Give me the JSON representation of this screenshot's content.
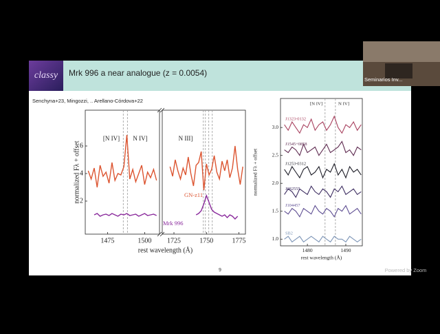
{
  "zoom": {
    "participant_label": "Seminarios Inv...",
    "watermark": "Powered by Zoom"
  },
  "slide": {
    "logo": "classy",
    "title": "Mrk 996 a near analogue (z = 0.0054)",
    "citation": "Senchyna+23, Mingozzi, .. Arellano-Córdova+22",
    "page_number": "9"
  },
  "chart_data": [
    {
      "type": "line",
      "xlabel": "rest wavelength (Å)",
      "ylabel": "normalized Fλ + offset",
      "annotations": [
        "[N IV]",
        "N IV]",
        "N III]"
      ],
      "ylim": [
        -0.4,
        8.6
      ],
      "yticks": [
        2,
        4,
        6
      ],
      "panels": [
        {
          "xlim": [
            1460,
            1510
          ],
          "xticks": [
            1475,
            1500
          ]
        },
        {
          "xlim": [
            1716,
            1780
          ],
          "xticks": [
            1725,
            1750,
            1775
          ]
        }
      ],
      "reference_lines": [
        1485.6,
        1488.4,
        1747.6,
        1749.2,
        1751.8,
        1754.5
      ],
      "series": [
        {
          "name": "GN-z11",
          "color": "#dc5430",
          "x": [
            1462,
            1464,
            1466,
            1468,
            1470,
            1472,
            1474,
            1476,
            1478,
            1480,
            1482,
            1484,
            1486,
            1488,
            1490,
            1492,
            1494,
            1496,
            1498,
            1500,
            1502,
            1504,
            1506,
            1508,
            null,
            1722,
            1724,
            1726,
            1728,
            1730,
            1732,
            1734,
            1736,
            1738,
            1740,
            1742,
            1744,
            1746,
            1748,
            1750,
            1752,
            1754,
            1756,
            1758,
            1760,
            1762,
            1764,
            1766,
            1768,
            1770,
            1772,
            1774,
            1776,
            1778
          ],
          "values": [
            4.2,
            3.6,
            4.4,
            3.0,
            4.6,
            3.8,
            4.1,
            3.3,
            4.8,
            3.5,
            4.0,
            3.9,
            4.5,
            6.8,
            3.6,
            4.3,
            3.4,
            4.0,
            4.6,
            3.2,
            4.1,
            3.7,
            4.3,
            3.5,
            null,
            4.5,
            3.8,
            5.0,
            4.2,
            3.6,
            4.4,
            3.9,
            5.2,
            4.0,
            3.1,
            4.6,
            4.8,
            5.6,
            2.8,
            4.7,
            3.9,
            4.3,
            5.3,
            4.1,
            3.6,
            4.9,
            4.2,
            5.0,
            3.7,
            4.4,
            6.0,
            4.3,
            3.2,
            4.5
          ]
        },
        {
          "name": "Mrk 996",
          "color": "#8a2a9c",
          "x": [
            1466,
            1468,
            1470,
            1472,
            1474,
            1476,
            1478,
            1480,
            1482,
            1484,
            1486,
            1488,
            1490,
            1492,
            1494,
            1496,
            1498,
            1500,
            1502,
            1504,
            1506,
            1508,
            null,
            1742,
            1744,
            1746,
            1748,
            1750,
            1752,
            1754,
            1756,
            1758,
            1760,
            1762,
            1764,
            1766,
            1768,
            1770,
            1772,
            1774
          ],
          "values": [
            1.0,
            1.1,
            0.9,
            1.0,
            1.05,
            0.95,
            1.1,
            1.0,
            0.9,
            1.05,
            1.0,
            1.1,
            0.95,
            1.0,
            1.05,
            0.9,
            1.0,
            1.1,
            0.95,
            1.0,
            1.05,
            0.95,
            null,
            1.0,
            1.1,
            1.3,
            1.8,
            2.4,
            1.9,
            1.4,
            1.2,
            1.1,
            1.0,
            0.9,
            1.0,
            0.8,
            1.0,
            0.9,
            0.7,
            0.9
          ]
        }
      ]
    },
    {
      "type": "line",
      "xlabel": "rest wavelength (Å)",
      "ylabel": "normalized Fλ + offset",
      "annotations": [
        "[N IV]",
        "N IV]"
      ],
      "ylim": [
        0.88,
        3.52
      ],
      "yticks": [
        {
          "value": 1,
          "label": "1.0"
        },
        1.5,
        {
          "value": 2,
          "label": "2.0"
        },
        2.5,
        {
          "value": 3,
          "label": "3.0"
        }
      ],
      "panels": [
        {
          "xlim": [
            1473,
            1494.3
          ],
          "xticks": [
            1480,
            1490
          ]
        }
      ],
      "reference_lines": [
        1484.6,
        1487.3
      ],
      "x": [
        1474,
        1475,
        1476,
        1477,
        1478,
        1479,
        1480,
        1481,
        1482,
        1483,
        1484,
        1485,
        1486,
        1487,
        1488,
        1489,
        1490,
        1491,
        1492,
        1493,
        1494
      ],
      "series": [
        {
          "name": "J1323-0132",
          "color": "#a8405e",
          "values": [
            3.05,
            2.95,
            3.1,
            3.0,
            2.9,
            3.05,
            3.0,
            3.15,
            2.95,
            3.05,
            3.1,
            2.95,
            3.05,
            3.2,
            3.0,
            2.9,
            3.05,
            3.0,
            3.1,
            2.95,
            3.05
          ]
        },
        {
          "name": "J1545+0858",
          "color": "#5e2a50",
          "values": [
            2.6,
            2.55,
            2.65,
            2.6,
            2.5,
            2.7,
            2.55,
            2.6,
            2.65,
            2.5,
            2.6,
            2.7,
            2.55,
            2.6,
            2.65,
            2.75,
            2.55,
            2.6,
            2.5,
            2.65,
            2.6
          ]
        },
        {
          "name": "J1253-0312",
          "color": "#1e1e28",
          "values": [
            2.25,
            2.15,
            2.3,
            2.2,
            2.1,
            2.25,
            2.3,
            2.15,
            2.2,
            2.3,
            2.1,
            2.25,
            2.2,
            2.35,
            2.15,
            2.25,
            2.1,
            2.3,
            2.2,
            2.25,
            2.15
          ]
        },
        {
          "name": "J082555",
          "color": "#3c2c60",
          "values": [
            1.8,
            1.9,
            1.85,
            1.75,
            1.9,
            1.85,
            1.8,
            1.95,
            1.85,
            1.8,
            1.9,
            1.85,
            1.75,
            1.9,
            1.85,
            1.95,
            1.8,
            1.85,
            1.9,
            1.8,
            1.85
          ]
        },
        {
          "name": "J104457",
          "color": "#5e4e92",
          "values": [
            1.5,
            1.45,
            1.55,
            1.5,
            1.4,
            1.55,
            1.5,
            1.45,
            1.6,
            1.5,
            1.45,
            1.55,
            1.5,
            1.4,
            1.55,
            1.5,
            1.6,
            1.45,
            1.5,
            1.55,
            1.45
          ]
        },
        {
          "name": "SB2",
          "color": "#7c94b6",
          "values": [
            1.0,
            1.05,
            0.95,
            1.0,
            1.05,
            0.95,
            1.0,
            1.05,
            1.0,
            0.95,
            1.05,
            1.0,
            0.95,
            1.05,
            1.0,
            1.0,
            0.95,
            1.05,
            1.0,
            0.95,
            1.0
          ]
        }
      ]
    }
  ]
}
